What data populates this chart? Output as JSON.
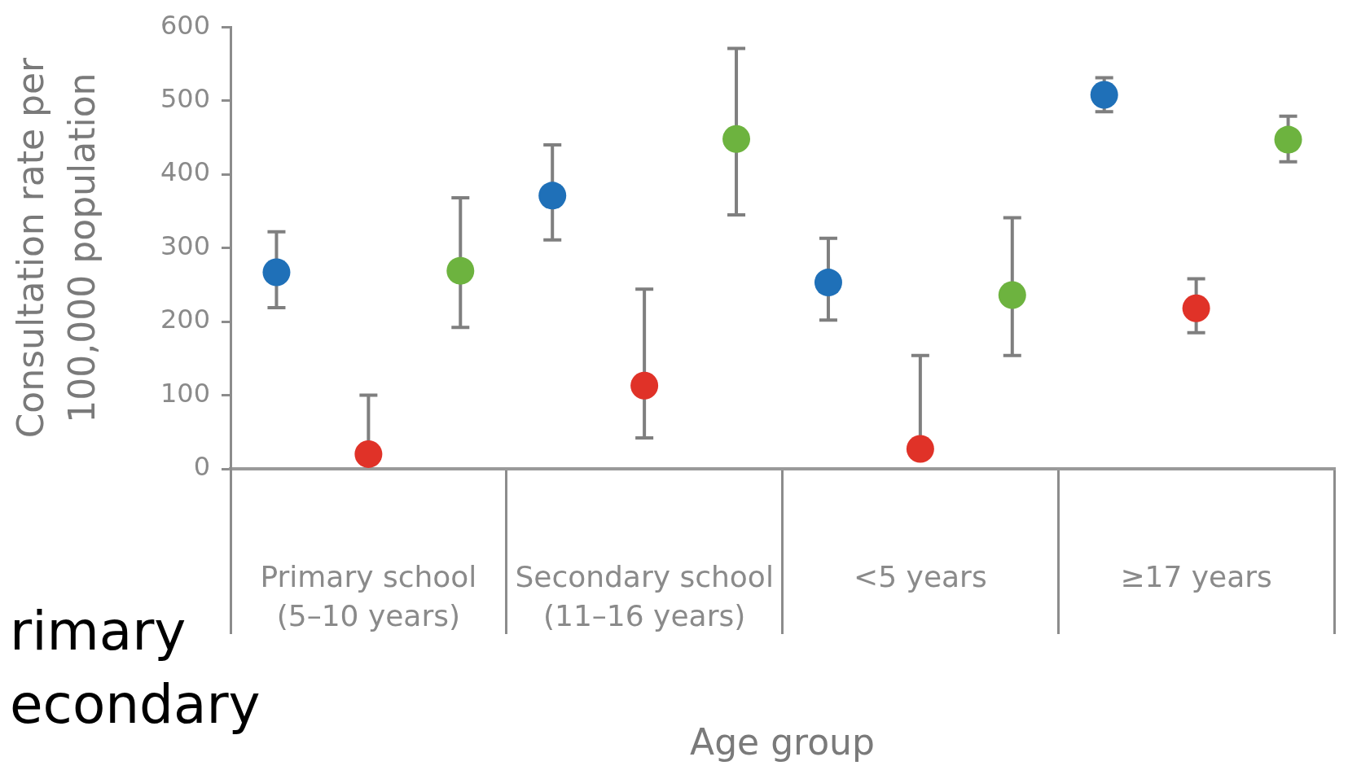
{
  "chart_data": {
    "type": "scatter",
    "xlabel": "Age group",
    "ylabel": "Consultation rate per 100,000 population",
    "categories": [
      "Primary school (5–10 years)",
      "Secondary school (11–16 years)",
      "<5 years",
      "≥17 years"
    ],
    "series": [
      {
        "color": "#1f70b8",
        "values": [
          267,
          371,
          253,
          508
        ],
        "errors": [
          [
            219,
            322
          ],
          [
            311,
            440
          ],
          [
            202,
            313
          ],
          [
            485,
            531
          ]
        ]
      },
      {
        "color": "#e03228",
        "values": [
          20,
          113,
          27,
          218
        ],
        "errors": [
          [
            20,
            100
          ],
          [
            42,
            244
          ],
          [
            27,
            154
          ],
          [
            185,
            258
          ]
        ]
      },
      {
        "color": "#6db33f",
        "values": [
          269,
          448,
          236,
          447
        ],
        "errors": [
          [
            192,
            368
          ],
          [
            345,
            571
          ],
          [
            154,
            341
          ],
          [
            417,
            479
          ]
        ]
      }
    ],
    "ylim": [
      0,
      600
    ],
    "yticks": [
      0,
      100,
      200,
      300,
      400,
      500,
      600
    ],
    "grid": false,
    "marker": "circle",
    "annotations": [
      "rimary",
      "econdary"
    ]
  }
}
